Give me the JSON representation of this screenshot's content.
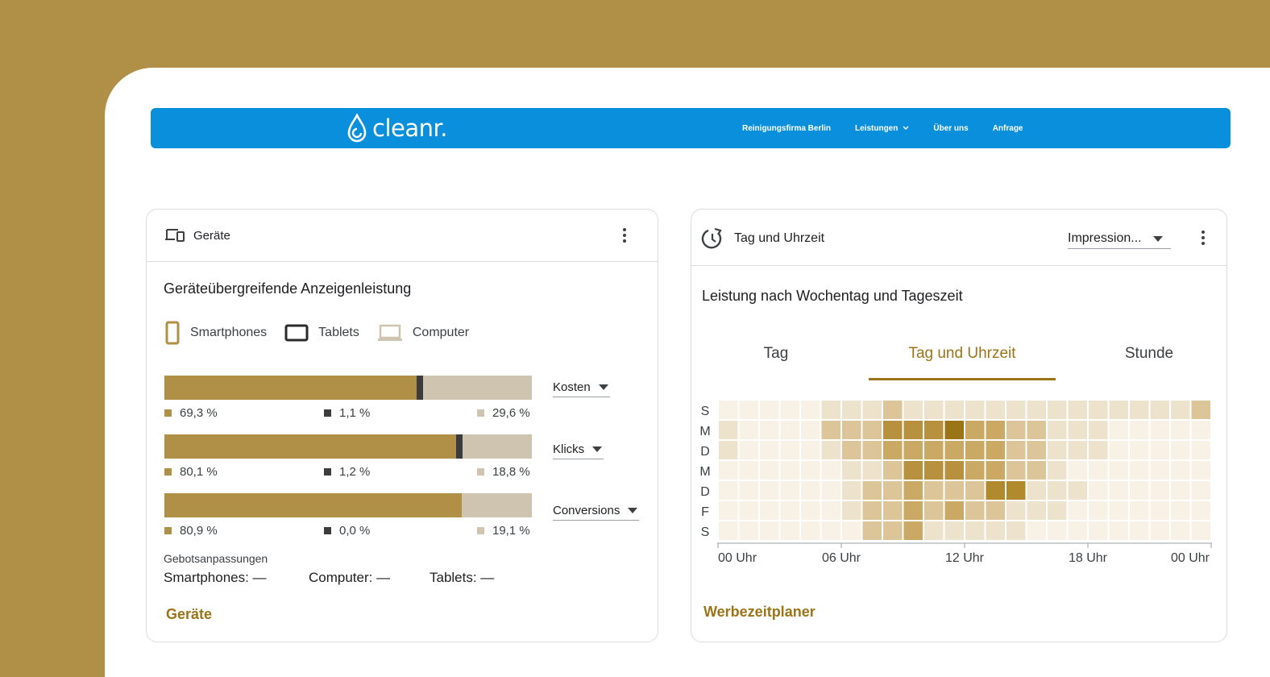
{
  "site": {
    "logo_text": "cleanr.",
    "nav": [
      {
        "label": "Reinigungsfirma Berlin"
      },
      {
        "label": "Leistungen",
        "has_dropdown": true
      },
      {
        "label": "Über uns"
      },
      {
        "label": "Anfrage"
      }
    ],
    "nav_color": "#0a8fdc",
    "page_background": "#b08f46"
  },
  "devices_card": {
    "header_title": "Geräte",
    "section_title": "Geräteübergreifende Anzeigenleistung",
    "legend": [
      {
        "label": "Smartphones",
        "icon": "smartphone-icon",
        "color": "#b08f46"
      },
      {
        "label": "Tablets",
        "icon": "tablet-icon",
        "color": "#3c3c3c"
      },
      {
        "label": "Computer",
        "icon": "laptop-icon",
        "color": "#cfc4b0"
      }
    ],
    "metrics": [
      {
        "label": "Kosten",
        "smartphones": "69,3 %",
        "tablets": "1,1 %",
        "computer": "29,6 %",
        "share": [
          69.3,
          1.1,
          29.6
        ]
      },
      {
        "label": "Klicks",
        "smartphones": "80,1 %",
        "tablets": "1,2 %",
        "computer": "18,8 %",
        "share": [
          80.1,
          1.2,
          18.8
        ]
      },
      {
        "label": "Conversions",
        "smartphones": "80,9 %",
        "tablets": "0,0 %",
        "computer": "19,1 %",
        "share": [
          80.9,
          0.0,
          19.1
        ]
      }
    ],
    "bid_adjustments_label": "Gebotsanpassungen",
    "bid_smartphones": "Smartphones: —",
    "bid_computer": "Computer: —",
    "bid_tablets": "Tablets: —",
    "link": "Geräte"
  },
  "time_card": {
    "header_title": "Tag und Uhrzeit",
    "metric_dropdown": "Impression...",
    "section_title": "Leistung nach Wochentag und Tageszeit",
    "tabs": [
      "Tag",
      "Tag und Uhrzeit",
      "Stunde"
    ],
    "active_tab": 1,
    "link": "Werbezeitplaner"
  },
  "chart_data": {
    "type": "heatmap",
    "title": "Leistung nach Wochentag und Tageszeit",
    "y_categories": [
      "S",
      "M",
      "D",
      "M",
      "D",
      "F",
      "S"
    ],
    "x_tick_labels": [
      "00 Uhr",
      "06 Uhr",
      "12 Uhr",
      "18 Uhr",
      "00 Uhr"
    ],
    "x_hours": 24,
    "color_scale": [
      "#f7f2e8",
      "#b08f46",
      "#9c7418"
    ],
    "intensity": [
      [
        1,
        1,
        1,
        1,
        1,
        2,
        2,
        2,
        3,
        2,
        2,
        2,
        2,
        2,
        2,
        2,
        2,
        2,
        2,
        2,
        2,
        2,
        2,
        3
      ],
      [
        2,
        1,
        1,
        1,
        1,
        3,
        3,
        3,
        5,
        5,
        5,
        7,
        4,
        4,
        3,
        3,
        2,
        2,
        2,
        1,
        1,
        1,
        1,
        1
      ],
      [
        2,
        1,
        1,
        1,
        1,
        2,
        3,
        3,
        4,
        4,
        4,
        4,
        4,
        4,
        3,
        3,
        2,
        2,
        2,
        1,
        1,
        1,
        1,
        1
      ],
      [
        1,
        1,
        1,
        1,
        1,
        1,
        2,
        2,
        3,
        5,
        5,
        5,
        4,
        4,
        3,
        3,
        2,
        1,
        1,
        1,
        1,
        1,
        1,
        1
      ],
      [
        1,
        1,
        1,
        1,
        1,
        1,
        2,
        3,
        3,
        4,
        3,
        3,
        3,
        6,
        6,
        2,
        2,
        2,
        1,
        1,
        1,
        1,
        1,
        1
      ],
      [
        1,
        1,
        1,
        1,
        1,
        1,
        2,
        3,
        3,
        4,
        3,
        4,
        3,
        3,
        2,
        2,
        2,
        1,
        1,
        1,
        1,
        1,
        1,
        1
      ],
      [
        1,
        1,
        1,
        1,
        1,
        1,
        1,
        3,
        3,
        4,
        2,
        2,
        2,
        2,
        2,
        1,
        1,
        1,
        1,
        1,
        1,
        1,
        1,
        1
      ]
    ]
  }
}
